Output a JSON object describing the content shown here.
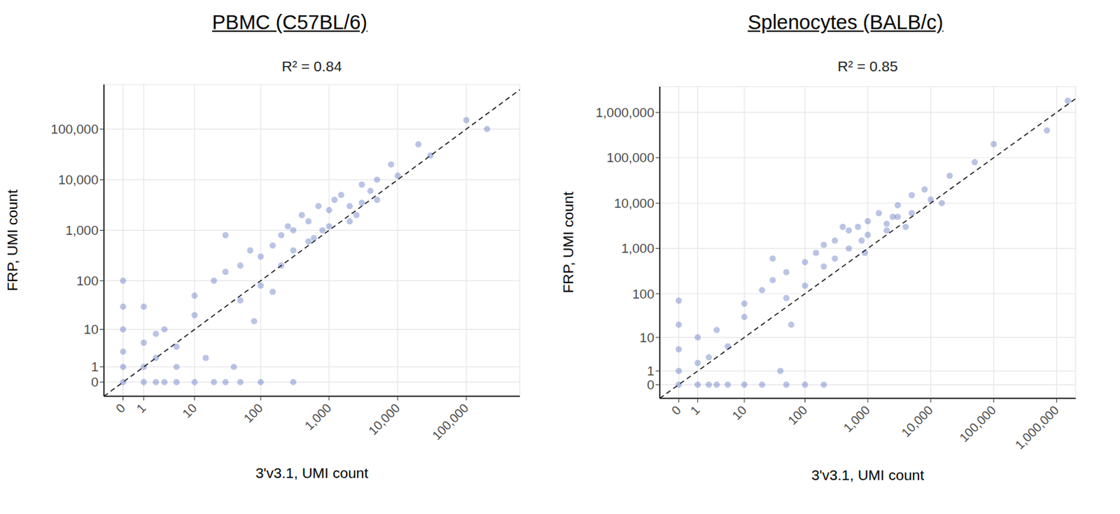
{
  "chart_data": [
    {
      "type": "scatter",
      "title": "PBMC (C57BL/6)",
      "subtitle": "R² = 0.84",
      "x_label": "3'v3.1, UMI count",
      "y_label": "FRP, UMI count",
      "log": true,
      "grid": true,
      "color": "#1a3aa8",
      "marker": "circle",
      "xlim": [
        -0.9,
        600000
      ],
      "ylim": [
        -0.9,
        760000
      ],
      "xticks": [
        0,
        1,
        10,
        100,
        {
          "value": 1000,
          "label": "1,000"
        },
        {
          "value": 10000,
          "label": "10,000"
        },
        {
          "value": 100000,
          "label": "100,000"
        }
      ],
      "yticks": [
        0,
        1,
        10,
        100,
        {
          "value": 1000,
          "label": "1,000"
        },
        {
          "value": 10000,
          "label": "10,000"
        },
        {
          "value": 100000,
          "label": "100,000"
        }
      ],
      "x": [
        0,
        0,
        0,
        0,
        0,
        0,
        1,
        1,
        1,
        1,
        2,
        2,
        2,
        3,
        3,
        5,
        5,
        5,
        10,
        10,
        20,
        30,
        50,
        100,
        300,
        10,
        20,
        30,
        50,
        50,
        100,
        100,
        150,
        200,
        200,
        300,
        300,
        500,
        500,
        700,
        800,
        1000,
        1000,
        1500,
        2000,
        2000,
        3000,
        3000,
        5000,
        5000,
        8000,
        10000,
        20000,
        30000,
        100000,
        200000,
        30,
        80,
        40,
        15,
        400,
        600,
        1200,
        2500,
        4000,
        150,
        250,
        70
      ],
      "y": [
        0,
        1,
        3,
        10,
        30,
        100,
        0,
        1,
        5,
        30,
        0,
        2,
        8,
        0,
        10,
        0,
        4,
        1,
        0,
        20,
        0,
        0,
        0,
        0,
        0,
        50,
        100,
        150,
        200,
        40,
        300,
        80,
        500,
        800,
        200,
        1000,
        400,
        1500,
        600,
        3000,
        1000,
        2500,
        1200,
        5000,
        3000,
        1500,
        8000,
        3500,
        10000,
        4000,
        20000,
        12000,
        50000,
        30000,
        150000,
        100000,
        800,
        15,
        1,
        2,
        2000,
        700,
        4000,
        2000,
        6000,
        60,
        1200,
        400
      ]
    },
    {
      "type": "scatter",
      "title": "Splenocytes (BALB/c)",
      "subtitle": "R² = 0.85",
      "x_label": "3'v3.1, UMI count",
      "y_label": "FRP, UMI count",
      "log": true,
      "grid": true,
      "color": "#1a3aa8",
      "marker": "circle",
      "xlim": [
        -1,
        2000000
      ],
      "ylim": [
        -1,
        3700000
      ],
      "xticks": [
        0,
        1,
        10,
        100,
        {
          "value": 1000,
          "label": "1,000"
        },
        {
          "value": 10000,
          "label": "10,000"
        },
        {
          "value": 100000,
          "label": "100,000"
        },
        {
          "value": 1000000,
          "label": "1,000,000"
        }
      ],
      "yticks": [
        0,
        1,
        10,
        100,
        {
          "value": 1000,
          "label": "1,000"
        },
        {
          "value": 10000,
          "label": "10,000"
        },
        {
          "value": 100000,
          "label": "100,000"
        },
        {
          "value": 1000000,
          "label": "1,000,000"
        }
      ],
      "x": [
        0,
        0,
        0,
        0,
        0,
        1,
        1,
        1,
        2,
        2,
        3,
        3,
        5,
        5,
        10,
        10,
        20,
        50,
        100,
        200,
        10,
        20,
        30,
        50,
        50,
        100,
        100,
        150,
        200,
        200,
        300,
        300,
        500,
        500,
        700,
        800,
        1000,
        1000,
        1500,
        2000,
        2000,
        3000,
        3000,
        5000,
        5000,
        8000,
        10000,
        20000,
        50000,
        100000,
        700000,
        1500000,
        30,
        60,
        400,
        900,
        2500,
        4000,
        15000,
        40
      ],
      "y": [
        0,
        1,
        5,
        20,
        70,
        0,
        2,
        10,
        0,
        3,
        0,
        15,
        0,
        6,
        0,
        30,
        0,
        0,
        0,
        0,
        60,
        120,
        200,
        300,
        80,
        500,
        150,
        800,
        1200,
        400,
        1500,
        600,
        2500,
        1000,
        3000,
        1500,
        4000,
        2000,
        6000,
        3500,
        2500,
        9000,
        5000,
        15000,
        6000,
        20000,
        12000,
        40000,
        80000,
        200000,
        400000,
        1800000,
        600,
        20,
        3000,
        800,
        5000,
        3000,
        10000,
        1
      ]
    }
  ]
}
